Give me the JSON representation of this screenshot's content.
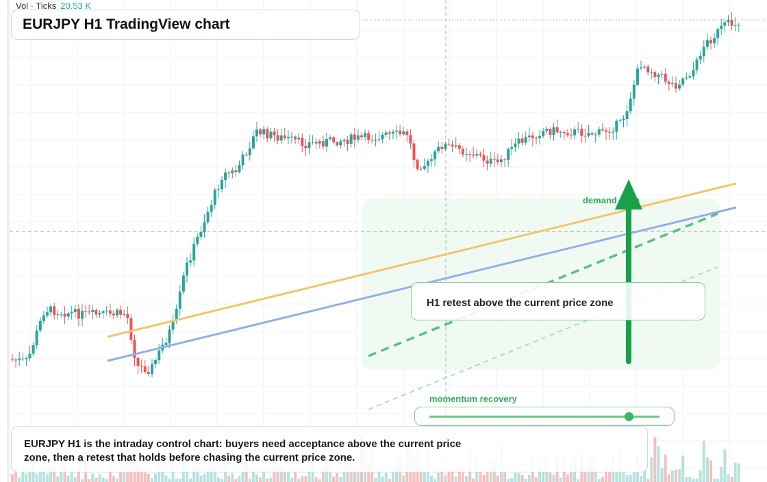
{
  "legend": {
    "volume_label": "Vol · Ticks",
    "volume_value": "20.53 K"
  },
  "header": {
    "title": "EURJPY H1 TradingView chart"
  },
  "annotations": {
    "demand_zone": "demand zone",
    "retest": "H1 retest above the current price zone",
    "momentum": "momentum recovery"
  },
  "caption": {
    "text": "EURJPY H1 is the intraday control chart: buyers need acceptance above the current price zone, then a retest that holds before chasing the current price zone."
  }
}
